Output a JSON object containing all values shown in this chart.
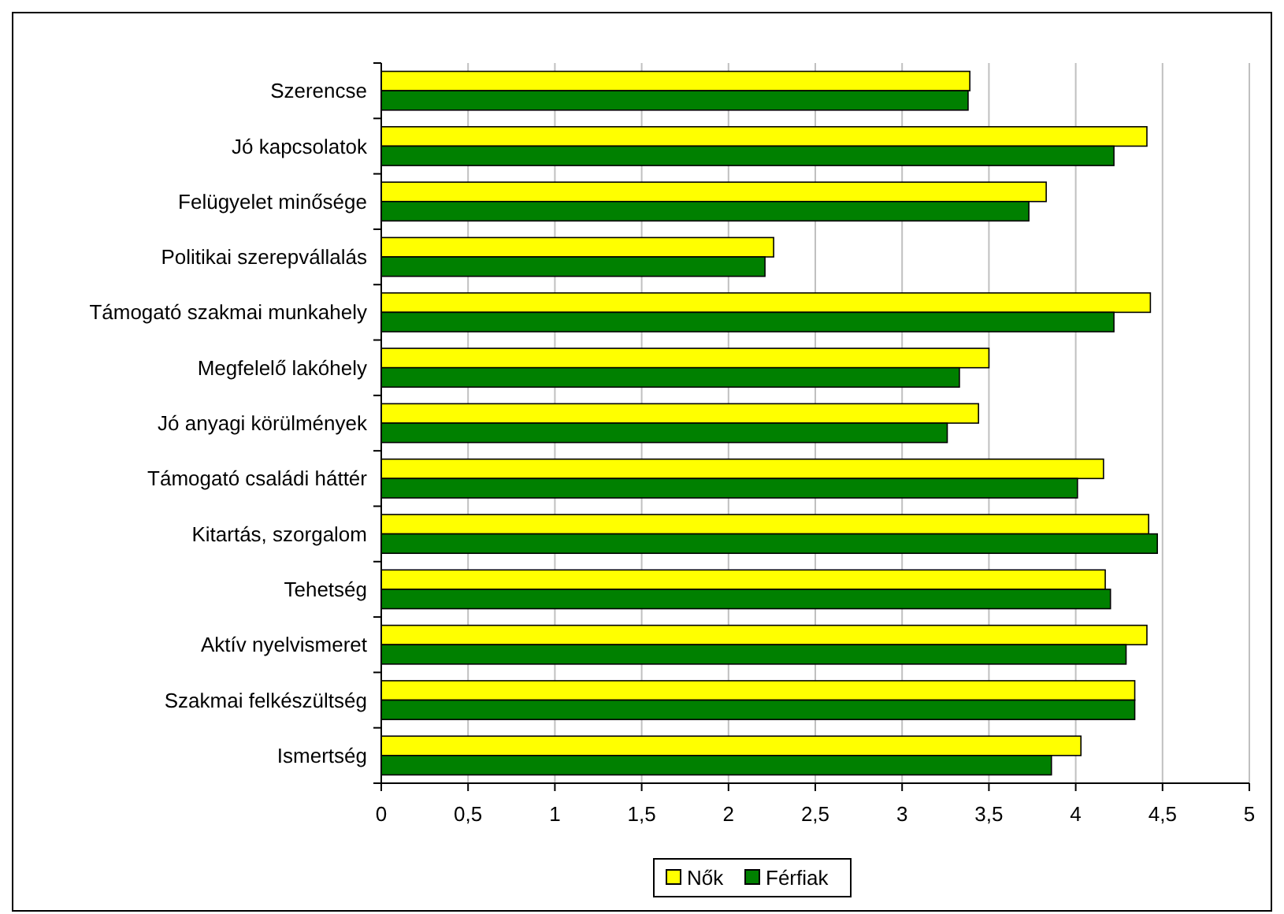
{
  "chart_data": {
    "type": "bar",
    "orientation": "horizontal",
    "categories": [
      "Szerencse",
      "Jó kapcsolatok",
      "Felügyelet minősége",
      "Politikai szerepvállalás",
      "Támogató szakmai munkahely",
      "Megfelelő lakóhely",
      "Jó anyagi körülmények",
      "Támogató családi háttér",
      "Kitartás, szorgalom",
      "Tehetség",
      "Aktív nyelvismeret",
      "Szakmai felkészültség",
      "Ismertség"
    ],
    "series": [
      {
        "name": "Nők",
        "color": "#ffff00",
        "values": [
          3.39,
          4.41,
          3.83,
          2.26,
          4.43,
          3.5,
          3.44,
          4.16,
          4.42,
          4.17,
          4.41,
          4.34,
          4.03
        ]
      },
      {
        "name": "Férfiak",
        "color": "#008000",
        "values": [
          3.38,
          4.22,
          3.73,
          2.21,
          4.22,
          3.33,
          3.26,
          4.01,
          4.47,
          4.2,
          4.29,
          4.34,
          3.86
        ]
      }
    ],
    "xlim": [
      0,
      5
    ],
    "xticks": [
      0,
      {
        "value": 0.5,
        "label": "0,5"
      },
      1,
      {
        "value": 1.5,
        "label": "1,5"
      },
      2,
      {
        "value": 2.5,
        "label": "2,5"
      },
      3,
      {
        "value": 3.5,
        "label": "3,5"
      },
      4,
      {
        "value": 4.5,
        "label": "4,5"
      },
      5
    ],
    "grid": "x",
    "legend": "bottom"
  }
}
